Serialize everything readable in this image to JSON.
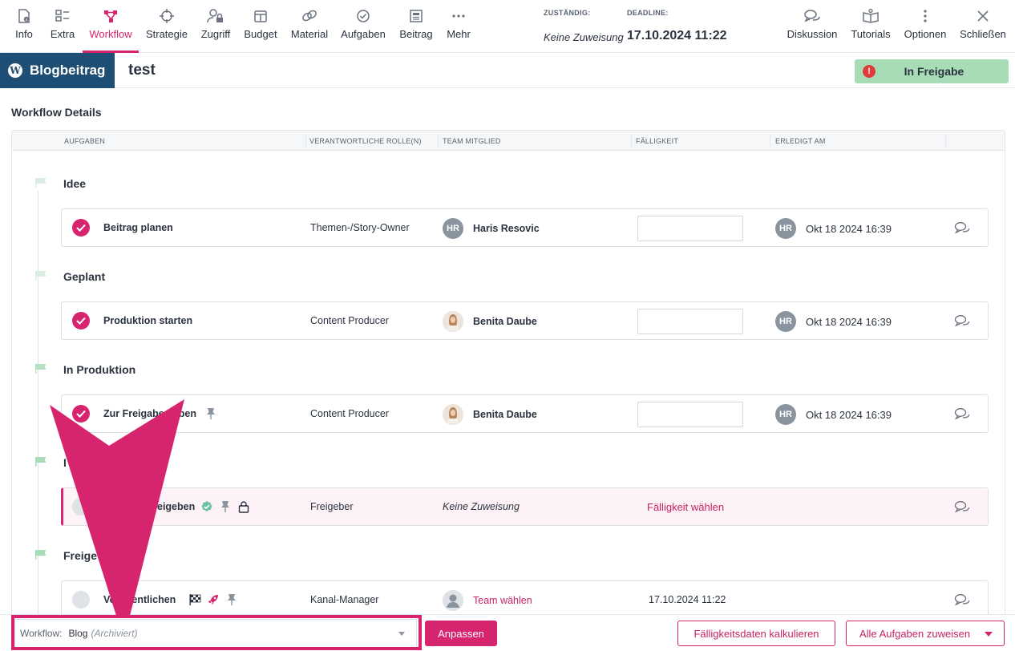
{
  "nav": {
    "items": [
      {
        "label": "Info",
        "icon": "doc-info-icon"
      },
      {
        "label": "Extra",
        "icon": "grid-list-icon"
      },
      {
        "label": "Workflow",
        "icon": "workflow-icon",
        "active": true
      },
      {
        "label": "Strategie",
        "icon": "crosshair-icon"
      },
      {
        "label": "Zugriff",
        "icon": "user-lock-icon"
      },
      {
        "label": "Budget",
        "icon": "wallet-icon"
      },
      {
        "label": "Material",
        "icon": "link-icon"
      },
      {
        "label": "Aufgaben",
        "icon": "check-circle-icon"
      },
      {
        "label": "Beitrag",
        "icon": "newspaper-icon"
      },
      {
        "label": "Mehr",
        "icon": "more-horizontal-icon"
      }
    ],
    "right": [
      {
        "label": "Diskussion",
        "icon": "chat-icon"
      },
      {
        "label": "Tutorials",
        "icon": "book-icon"
      },
      {
        "label": "Optionen",
        "icon": "more-vertical-icon"
      },
      {
        "label": "Schließen",
        "icon": "close-icon"
      }
    ]
  },
  "header": {
    "assigned_label": "ZUSTÄNDIG:",
    "assigned_value": "Keine Zuweisung",
    "deadline_label": "DEADLINE:",
    "deadline_value": "17.10.2024 11:22"
  },
  "titlebar": {
    "type": "Blogbeitrag",
    "title": "test",
    "status": "In Freigabe"
  },
  "section_title": "Workflow Details",
  "columns": [
    "AUFGABEN",
    "VERANTWORTLICHE ROLLE(N)",
    "TEAM MITGLIED",
    "FÄLLIGKEIT",
    "ERLEDIGT AM"
  ],
  "stages": [
    {
      "name": "Idee"
    },
    {
      "name": "Geplant"
    },
    {
      "name": "In Produktion"
    },
    {
      "name": "I"
    },
    {
      "name": "Freige"
    }
  ],
  "tasks": [
    {
      "task": "Beitrag planen",
      "role": "Themen-/Story-Owner",
      "avatar": "HR",
      "member": "Haris Resovic",
      "done_avatar": "HR",
      "done": "Okt 18 2024 16:39"
    },
    {
      "task": "Produktion starten",
      "role": "Content Producer",
      "member": "Benita Daube",
      "done_avatar": "HR",
      "done": "Okt 18 2024 16:39"
    },
    {
      "task": "Zur Freigabe geben",
      "role": "Content Producer",
      "member": "Benita Daube",
      "done_avatar": "HR",
      "done": "Okt 18 2024 16:39"
    },
    {
      "task": "eigeben",
      "role": "Freigeber",
      "member": "Keine Zuweisung",
      "due": "Fälligkeit wählen"
    },
    {
      "task": "Veröffentlichen",
      "role": "Kanal-Manager",
      "member": "Team wählen",
      "due": "17.10.2024 11:22"
    }
  ],
  "bottom": {
    "workflow_label": "Workflow:",
    "workflow_value": "Blog",
    "workflow_state": "(Archiviert)",
    "adjust_btn": "Anpassen",
    "calc_btn": "Fälligkeitsdaten kalkulieren",
    "assign_btn": "Alle Aufgaben zuweisen"
  },
  "colors": {
    "accent": "#d6246e",
    "brand": "#1e4e73",
    "status": "#a8dcb6"
  }
}
